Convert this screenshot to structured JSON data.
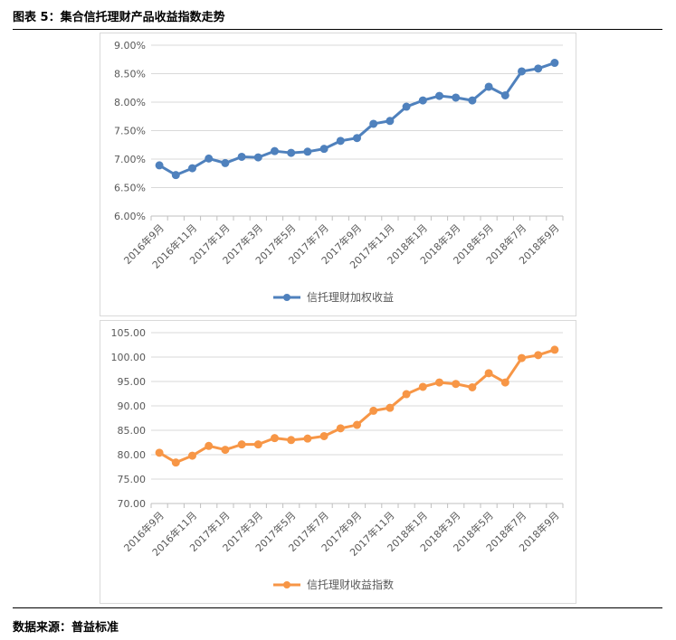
{
  "figure": {
    "title": "图表 5：集合信托理财产品收益指数走势",
    "source": "数据来源：普益标准"
  },
  "chart_data": [
    {
      "type": "line",
      "x": [
        "2016年9月",
        "2016年10月",
        "2016年11月",
        "2016年12月",
        "2017年1月",
        "2017年2月",
        "2017年3月",
        "2017年4月",
        "2017年5月",
        "2017年6月",
        "2017年7月",
        "2017年8月",
        "2017年9月",
        "2017年10月",
        "2017年11月",
        "2017年12月",
        "2018年1月",
        "2018年2月",
        "2018年3月",
        "2018年4月",
        "2018年5月",
        "2018年6月",
        "2018年7月",
        "2018年8月",
        "2018年9月"
      ],
      "x_tick_labels": [
        "2016年9月",
        "2016年11月",
        "2017年1月",
        "2017年3月",
        "2017年5月",
        "2017年7月",
        "2017年9月",
        "2017年11月",
        "2018年1月",
        "2018年3月",
        "2018年5月",
        "2018年7月",
        "2018年9月"
      ],
      "y_tick_labels": [
        "6.00%",
        "6.50%",
        "7.00%",
        "7.50%",
        "8.00%",
        "8.50%",
        "9.00%"
      ],
      "series": [
        {
          "name": "信托理财加权收益",
          "color": "#4f81bd",
          "values": [
            6.89,
            6.72,
            6.84,
            7.01,
            6.93,
            7.04,
            7.03,
            7.14,
            7.11,
            7.13,
            7.18,
            7.32,
            7.37,
            7.62,
            7.67,
            7.92,
            8.03,
            8.11,
            8.08,
            8.03,
            8.27,
            8.12,
            8.54,
            8.59,
            8.69
          ]
        }
      ],
      "ylim": [
        6.0,
        9.0
      ],
      "y_step": 0.5,
      "grid": "horizontal",
      "legend_position": "bottom"
    },
    {
      "type": "line",
      "x": [
        "2016年9月",
        "2016年10月",
        "2016年11月",
        "2016年12月",
        "2017年1月",
        "2017年2月",
        "2017年3月",
        "2017年4月",
        "2017年5月",
        "2017年6月",
        "2017年7月",
        "2017年8月",
        "2017年9月",
        "2017年10月",
        "2017年11月",
        "2017年12月",
        "2018年1月",
        "2018年2月",
        "2018年3月",
        "2018年4月",
        "2018年5月",
        "2018年6月",
        "2018年7月",
        "2018年8月",
        "2018年9月"
      ],
      "x_tick_labels": [
        "2016年9月",
        "2016年11月",
        "2017年1月",
        "2017年3月",
        "2017年5月",
        "2017年7月",
        "2017年9月",
        "2017年11月",
        "2018年1月",
        "2018年3月",
        "2018年5月",
        "2018年7月",
        "2018年9月"
      ],
      "y_tick_labels": [
        "70.00",
        "75.00",
        "80.00",
        "85.00",
        "90.00",
        "95.00",
        "100.00",
        "105.00"
      ],
      "series": [
        {
          "name": "信托理财收益指数",
          "color": "#f79646",
          "values": [
            80.4,
            78.4,
            79.8,
            81.8,
            81.0,
            82.1,
            82.1,
            83.4,
            83.0,
            83.3,
            83.8,
            85.4,
            86.1,
            89.0,
            89.6,
            92.4,
            93.9,
            94.8,
            94.5,
            93.8,
            96.7,
            94.8,
            99.8,
            100.4,
            101.5
          ]
        }
      ],
      "ylim": [
        70,
        105
      ],
      "y_step": 5,
      "grid": "horizontal",
      "legend_position": "bottom"
    }
  ]
}
